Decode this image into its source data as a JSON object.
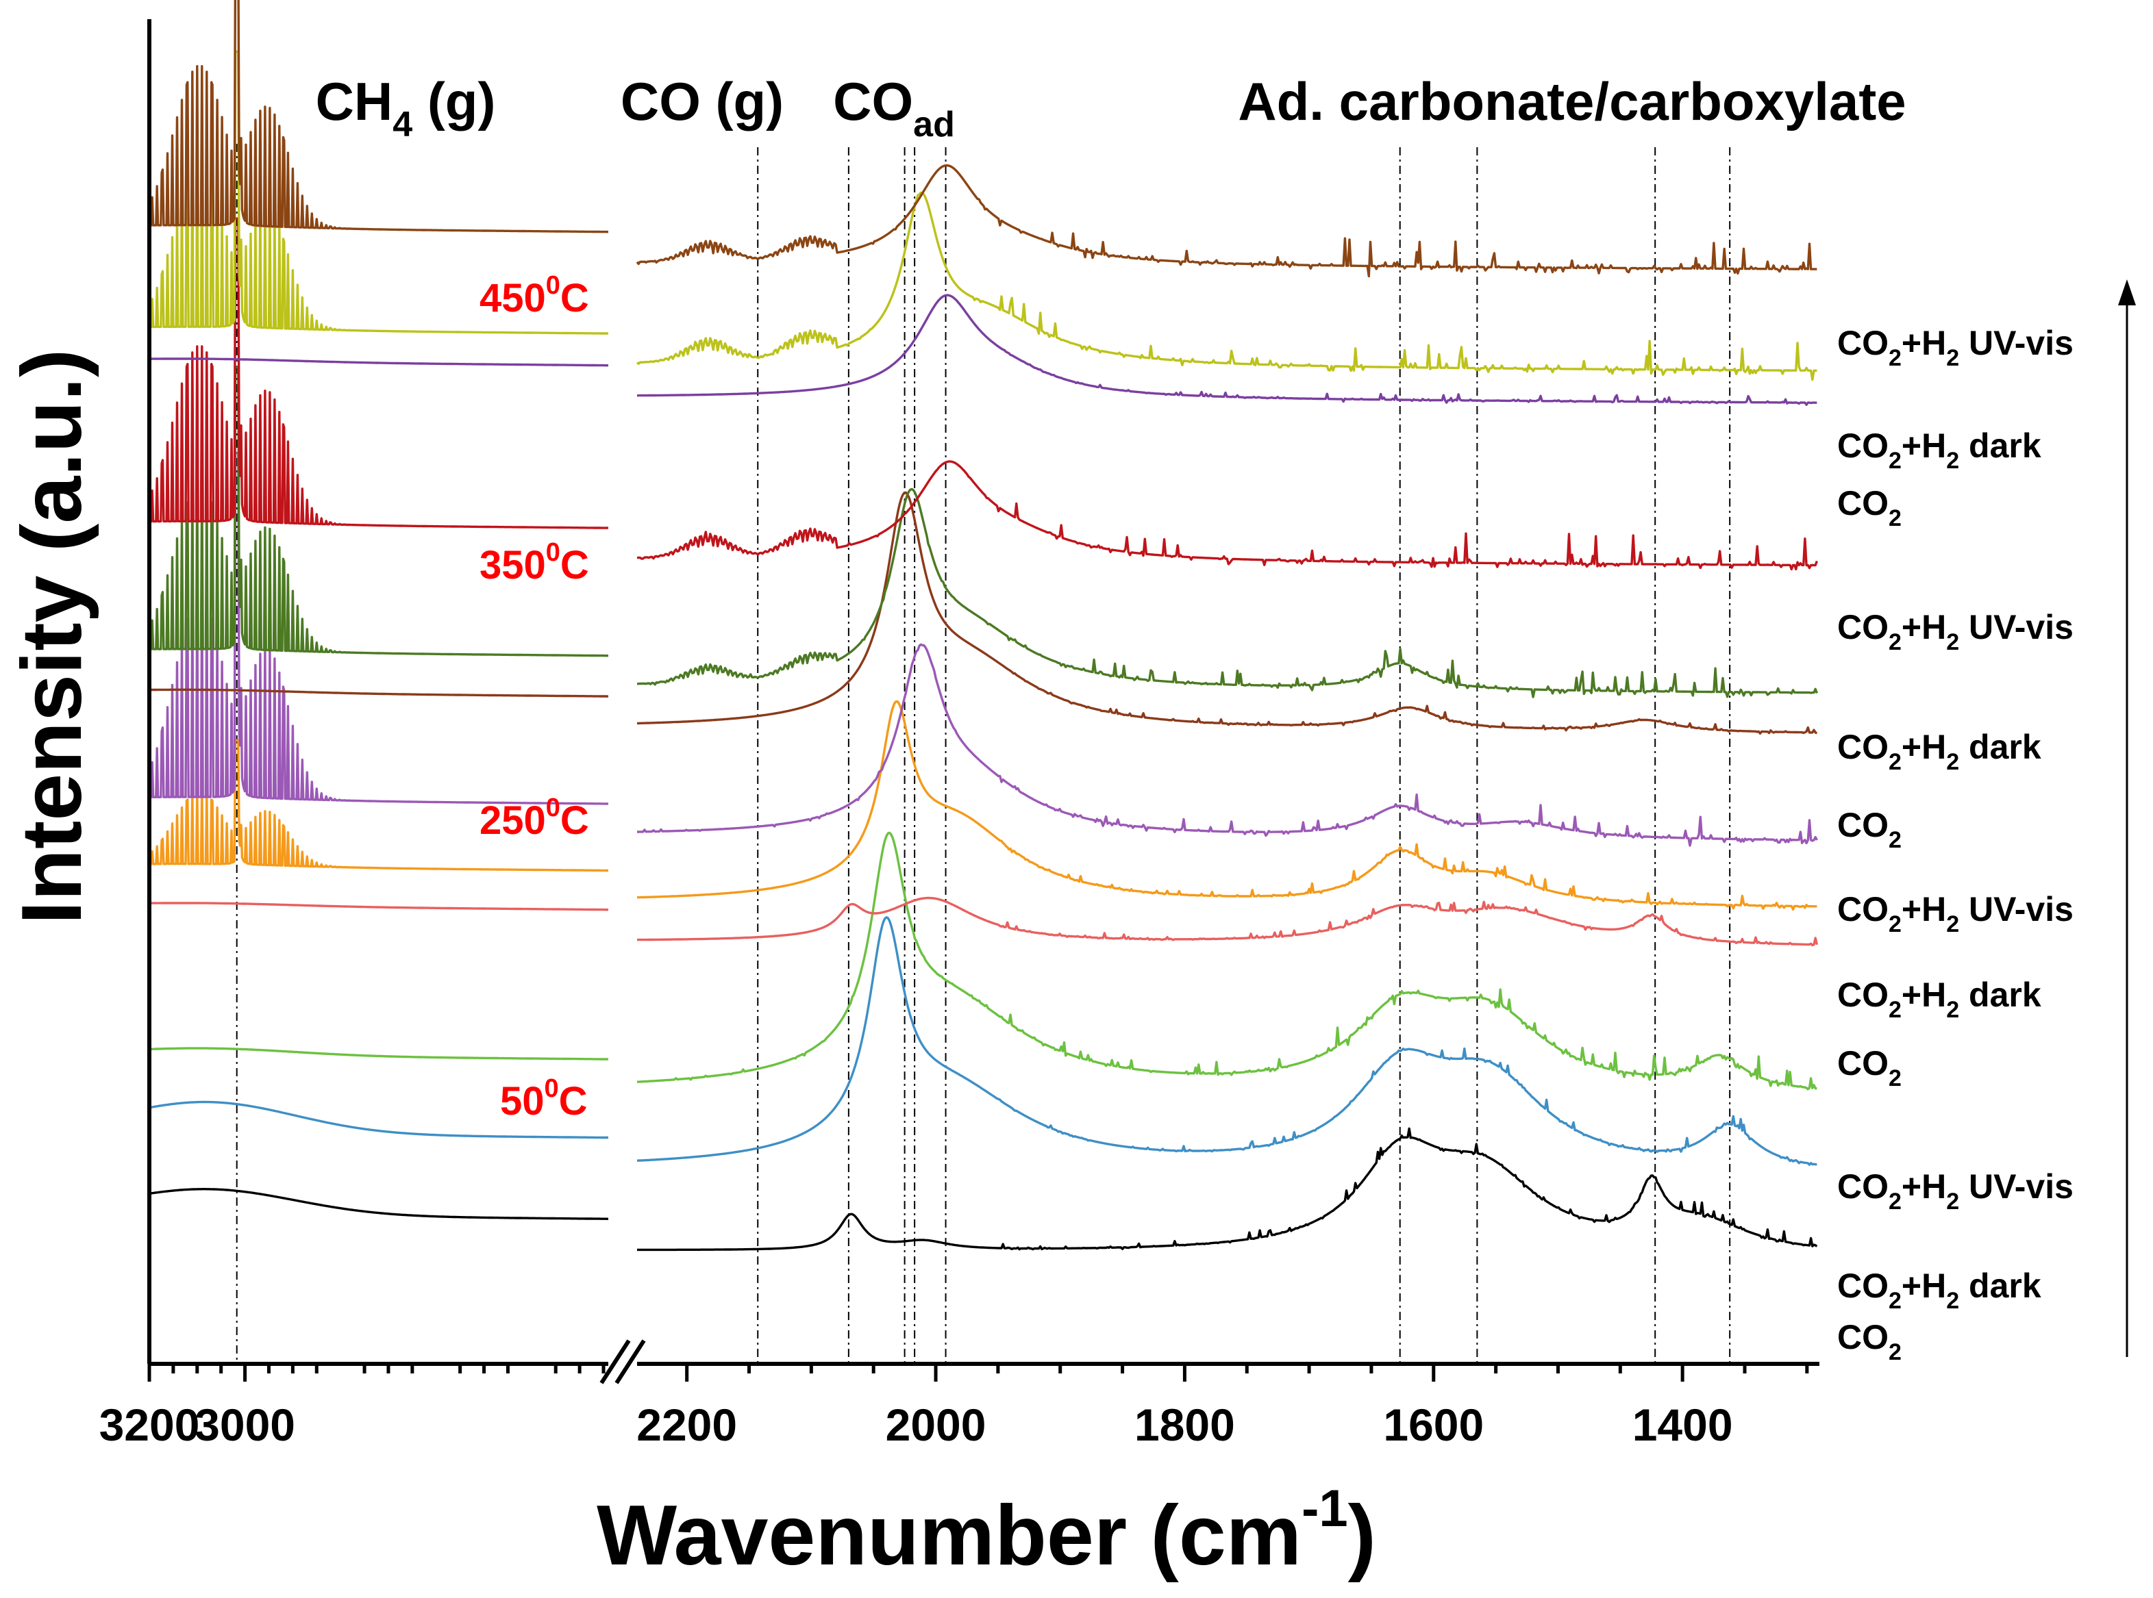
{
  "chart_data": {
    "type": "line",
    "title": "",
    "xlabel": "Wavenumber (cm⁻¹)",
    "ylabel": "Intensity (a.u.)",
    "x_axis_break": true,
    "x_segments": [
      {
        "range": [
          3200,
          2240
        ],
        "ticks": [
          3200,
          3000
        ]
      },
      {
        "range": [
          2240,
          1290
        ],
        "ticks": [
          2200,
          2000,
          1800,
          1600,
          1400
        ]
      }
    ],
    "tick_labels": [
      "3200",
      "3000",
      "2200",
      "2000",
      "1800",
      "1600",
      "1400"
    ],
    "reference_lines_cm-1": [
      3017,
      2143,
      2070,
      2025,
      2017,
      1992,
      1627,
      1565,
      1422,
      1362
    ],
    "band_labels": [
      {
        "text": "CH₄ (g)",
        "main": "CH",
        "sub": "4",
        "tail": " (g)",
        "x": 3017
      },
      {
        "text": "CO (g)",
        "main": "CO (g)",
        "sub": "",
        "tail": "",
        "x": 2143
      },
      {
        "text": "COad",
        "main": "CO",
        "sub": "ad",
        "tail": "",
        "x": 2045
      },
      {
        "text": "Ad. carbonate/carboxylate",
        "main": "Ad. carbonate/carboxylate",
        "sub": "",
        "tail": "",
        "x": 1580
      }
    ],
    "temperatures": [
      {
        "label": "450°C",
        "num": "450",
        "sup": "0",
        "unit": "C"
      },
      {
        "label": "350°C",
        "num": "350",
        "sup": "0",
        "unit": "C"
      },
      {
        "label": "250°C",
        "num": "250",
        "sup": "0",
        "unit": "C"
      },
      {
        "label": "50°C",
        "num": "50",
        "sup": "0",
        "unit": "C"
      }
    ],
    "series": [
      {
        "name": "50°C CO2",
        "condition": "CO2",
        "temperature": "50°C",
        "color": "#000000",
        "baseline": 0.32,
        "peaks": [
          {
            "x": 2068,
            "h": 0.24,
            "w": 12
          },
          {
            "x": 2010,
            "h": 0.06,
            "w": 25
          },
          {
            "x": 1627,
            "h": 0.58,
            "w": 40
          },
          {
            "x": 1560,
            "h": 0.52,
            "w": 55
          },
          {
            "x": 1425,
            "h": 0.34,
            "w": 12
          },
          {
            "x": 1385,
            "h": 0.2,
            "w": 45
          }
        ],
        "ch4": 0,
        "co_gas": 0,
        "noise": 0.5,
        "left_curve": 0.18
      },
      {
        "name": "50°C CO2+H2 dark",
        "condition": "CO2+H2 dark",
        "temperature": "50°C",
        "color": "#3e8fc6",
        "baseline": 0.88,
        "peaks": [
          {
            "x": 2040,
            "h": 1.35,
            "w": 17
          },
          {
            "x": 1990,
            "h": 0.55,
            "w": 75
          },
          {
            "x": 1627,
            "h": 0.6,
            "w": 45
          },
          {
            "x": 1555,
            "h": 0.58,
            "w": 55
          },
          {
            "x": 1362,
            "h": 0.28,
            "w": 25
          }
        ],
        "ch4": 0,
        "co_gas": 0,
        "noise": 0.45,
        "left_curve": 0.22
      },
      {
        "name": "50°C CO2+H2 UV-vis",
        "condition": "CO2+H2 UV-vis",
        "temperature": "50°C",
        "color": "#6cc140",
        "baseline": 1.42,
        "peaks": [
          {
            "x": 2038,
            "h": 1.35,
            "w": 17
          },
          {
            "x": 1990,
            "h": 0.6,
            "w": 75
          },
          {
            "x": 1627,
            "h": 0.48,
            "w": 45
          },
          {
            "x": 1555,
            "h": 0.5,
            "w": 55
          },
          {
            "x": 1370,
            "h": 0.22,
            "w": 25
          }
        ],
        "ch4": 0,
        "co_gas": 0,
        "noise": 0.9,
        "left_curve": 0.05
      },
      {
        "name": "250°C CO2",
        "condition": "CO2",
        "temperature": "250°C",
        "color": "#e8605f",
        "baseline": 2.45,
        "peaks": [
          {
            "x": 2068,
            "h": 0.16,
            "w": 12
          },
          {
            "x": 2005,
            "h": 0.3,
            "w": 45
          },
          {
            "x": 1627,
            "h": 0.2,
            "w": 40
          },
          {
            "x": 1540,
            "h": 0.22,
            "w": 60
          },
          {
            "x": 1425,
            "h": 0.16,
            "w": 15
          }
        ],
        "ch4": 0,
        "co_gas": 0,
        "noise": 0.35,
        "left_curve": 0.02
      },
      {
        "name": "250°C CO2+H2 dark",
        "condition": "CO2+H2 dark",
        "temperature": "250°C",
        "color": "#f59a1a",
        "baseline": 2.72,
        "peaks": [
          {
            "x": 2032,
            "h": 1.05,
            "w": 15
          },
          {
            "x": 1985,
            "h": 0.55,
            "w": 60
          },
          {
            "x": 1627,
            "h": 0.32,
            "w": 30
          },
          {
            "x": 1555,
            "h": 0.18,
            "w": 45
          }
        ],
        "ch4": 0.9,
        "co_gas": 0,
        "noise": 0.5,
        "left_curve": 0.02
      },
      {
        "name": "250°C CO2+H2 UV-vis",
        "condition": "CO2+H2 UV-vis",
        "temperature": "250°C",
        "color": "#9b59b6",
        "baseline": 3.18,
        "peaks": [
          {
            "x": 2012,
            "h": 1.05,
            "w": 20
          },
          {
            "x": 1975,
            "h": 0.38,
            "w": 60
          },
          {
            "x": 1627,
            "h": 0.2,
            "w": 30
          },
          {
            "x": 1530,
            "h": 0.1,
            "w": 45
          }
        ],
        "ch4": 2.5,
        "co_gas": 0,
        "noise": 0.95,
        "left_curve": 0.02
      },
      {
        "name": "350°C CO2",
        "condition": "CO2",
        "temperature": "350°C",
        "color": "#8b3a1a",
        "baseline": 3.92,
        "peaks": [
          {
            "x": 2025,
            "h": 1.35,
            "w": 18
          },
          {
            "x": 1975,
            "h": 0.45,
            "w": 65
          },
          {
            "x": 1620,
            "h": 0.15,
            "w": 30
          },
          {
            "x": 1430,
            "h": 0.08,
            "w": 30
          }
        ],
        "ch4": 0,
        "co_gas": 0,
        "noise": 0.3,
        "left_curve": 0.02
      },
      {
        "name": "350°C CO2+H2 dark",
        "condition": "CO2+H2 dark",
        "temperature": "350°C",
        "color": "#4c7a23",
        "baseline": 4.2,
        "peaks": [
          {
            "x": 2020,
            "h": 1.12,
            "w": 18
          },
          {
            "x": 1975,
            "h": 0.4,
            "w": 60
          },
          {
            "x": 1627,
            "h": 0.18,
            "w": 25
          }
        ],
        "ch4": 2.05,
        "co_gas": 0.12,
        "noise": 1.0,
        "left_curve": 0.02
      },
      {
        "name": "350°C CO2+H2 UV-vis",
        "condition": "CO2+H2 UV-vis",
        "temperature": "350°C",
        "color": "#c0141b",
        "baseline": 5.08,
        "peaks": [
          {
            "x": 1990,
            "h": 0.6,
            "w": 32
          },
          {
            "x": 1940,
            "h": 0.15,
            "w": 60
          }
        ],
        "ch4": 2.2,
        "co_gas": 0.16,
        "noise": 1.3,
        "left_curve": 0.02
      },
      {
        "name": "450°C CO2",
        "condition": "CO2",
        "temperature": "450°C",
        "color": "#7b3fa0",
        "baseline": 6.2,
        "peaks": [
          {
            "x": 1992,
            "h": 0.6,
            "w": 28
          },
          {
            "x": 1950,
            "h": 0.18,
            "w": 55
          }
        ],
        "ch4": 0,
        "co_gas": 0,
        "noise": 0.3,
        "left_curve": 0.02
      },
      {
        "name": "450°C CO2+H2 dark",
        "condition": "CO2+H2 dark",
        "temperature": "450°C",
        "color": "#bcc21a",
        "baseline": 6.42,
        "peaks": [
          {
            "x": 2012,
            "h": 1.0,
            "w": 17
          },
          {
            "x": 1960,
            "h": 0.35,
            "w": 60
          }
        ],
        "ch4": 2.0,
        "co_gas": 0.16,
        "noise": 1.2,
        "left_curve": 0.02
      },
      {
        "name": "450°C CO2+H2 UV-vis",
        "condition": "CO2+H2 UV-vis",
        "temperature": "450°C",
        "color": "#8b4513",
        "baseline": 7.12,
        "peaks": [
          {
            "x": 1992,
            "h": 0.62,
            "w": 30
          },
          {
            "x": 1940,
            "h": 0.12,
            "w": 60
          }
        ],
        "ch4": 2.0,
        "co_gas": 0.14,
        "noise": 1.3,
        "left_curve": 0.02
      }
    ],
    "right_labels": [
      {
        "text": "CO2+H2 UV-vis",
        "a": "CO",
        "s1": "2",
        "b": "+H",
        "s2": "2",
        "c": " UV-vis"
      },
      {
        "text": "CO2+H2 dark",
        "a": "CO",
        "s1": "2",
        "b": "+H",
        "s2": "2",
        "c": " dark"
      },
      {
        "text": "CO2",
        "a": "CO",
        "s1": "2",
        "b": "",
        "s2": "",
        "c": ""
      },
      {
        "text": "CO2+H2 UV-vis",
        "a": "CO",
        "s1": "2",
        "b": "+H",
        "s2": "2",
        "c": " UV-vis"
      },
      {
        "text": "CO2+H2 dark",
        "a": "CO",
        "s1": "2",
        "b": "+H",
        "s2": "2",
        "c": " dark"
      },
      {
        "text": "CO2",
        "a": "CO",
        "s1": "2",
        "b": "",
        "s2": "",
        "c": ""
      },
      {
        "text": "CO2+H2 UV-vis",
        "a": "CO",
        "s1": "2",
        "b": "+H",
        "s2": "2",
        "c": " UV-vis"
      },
      {
        "text": "CO2+H2 dark",
        "a": "CO",
        "s1": "2",
        "b": "+H",
        "s2": "2",
        "c": " dark"
      },
      {
        "text": "CO2",
        "a": "CO",
        "s1": "2",
        "b": "",
        "s2": "",
        "c": ""
      },
      {
        "text": "CO2+H2 UV-vis",
        "a": "CO",
        "s1": "2",
        "b": "+H",
        "s2": "2",
        "c": " UV-vis"
      },
      {
        "text": "CO2+H2 dark",
        "a": "CO",
        "s1": "2",
        "b": "+H",
        "s2": "2",
        "c": " dark"
      },
      {
        "text": "CO2",
        "a": "CO",
        "s1": "2",
        "b": "",
        "s2": "",
        "c": ""
      }
    ]
  }
}
